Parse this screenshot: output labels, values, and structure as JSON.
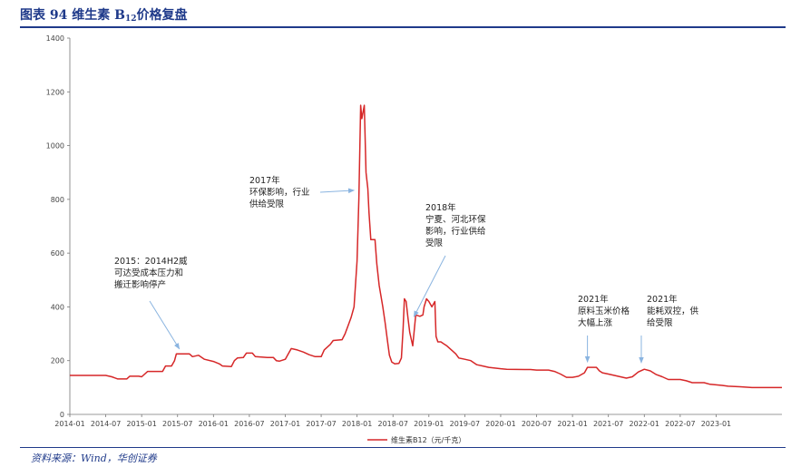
{
  "header": {
    "title_prefix": "图表 94  维生素 B",
    "title_sub": "12",
    "title_suffix": "价格复盘"
  },
  "footer": {
    "source": "资料来源：Wind，华创证券"
  },
  "chart_data": {
    "type": "line",
    "ylim": [
      0,
      1400
    ],
    "yticks": [
      0,
      200,
      400,
      600,
      800,
      1000,
      1200,
      1400
    ],
    "xlim": [
      0,
      119
    ],
    "xticks": [
      {
        "label": "2014-01",
        "m": 0
      },
      {
        "label": "2014-07",
        "m": 6
      },
      {
        "label": "2015-01",
        "m": 12
      },
      {
        "label": "2015-07",
        "m": 18
      },
      {
        "label": "2016-01",
        "m": 24
      },
      {
        "label": "2016-07",
        "m": 30
      },
      {
        "label": "2017-01",
        "m": 36
      },
      {
        "label": "2017-07",
        "m": 42
      },
      {
        "label": "2018-01",
        "m": 48
      },
      {
        "label": "2018-07",
        "m": 54
      },
      {
        "label": "2019-01",
        "m": 60
      },
      {
        "label": "2019-07",
        "m": 66
      },
      {
        "label": "2020-01",
        "m": 72
      },
      {
        "label": "2020-07",
        "m": 78
      },
      {
        "label": "2021-01",
        "m": 84
      },
      {
        "label": "2021-07",
        "m": 90
      },
      {
        "label": "2022-01",
        "m": 96
      },
      {
        "label": "2022-07",
        "m": 102
      },
      {
        "label": "2023-01",
        "m": 108
      }
    ],
    "series": [
      {
        "name": "维生素B12（元/千克）",
        "color": "#d62728",
        "points": [
          [
            0,
            145
          ],
          [
            6,
            145
          ],
          [
            7,
            140
          ],
          [
            8,
            132
          ],
          [
            9.5,
            132
          ],
          [
            10,
            142
          ],
          [
            11.5,
            142
          ],
          [
            12,
            140
          ],
          [
            13,
            160
          ],
          [
            15.5,
            160
          ],
          [
            16,
            180
          ],
          [
            17,
            180
          ],
          [
            17.5,
            200
          ],
          [
            17.8,
            225
          ],
          [
            20,
            225
          ],
          [
            20.5,
            215
          ],
          [
            21.5,
            220
          ],
          [
            22.5,
            205
          ],
          [
            24,
            197
          ],
          [
            25,
            188
          ],
          [
            25.5,
            180
          ],
          [
            27,
            178
          ],
          [
            27.5,
            200
          ],
          [
            28,
            210
          ],
          [
            29,
            212
          ],
          [
            29.5,
            228
          ],
          [
            30.5,
            228
          ],
          [
            31,
            215
          ],
          [
            33,
            212
          ],
          [
            34,
            212
          ],
          [
            34.5,
            200
          ],
          [
            35,
            198
          ],
          [
            36,
            205
          ],
          [
            36.5,
            225
          ],
          [
            37,
            245
          ],
          [
            38,
            240
          ],
          [
            39,
            232
          ],
          [
            40,
            222
          ],
          [
            41,
            215
          ],
          [
            42,
            215
          ],
          [
            42.5,
            240
          ],
          [
            43.5,
            260
          ],
          [
            44,
            275
          ],
          [
            45.5,
            278
          ],
          [
            46,
            300
          ],
          [
            46.5,
            330
          ],
          [
            47,
            360
          ],
          [
            47.5,
            400
          ],
          [
            48,
            570
          ],
          [
            48.3,
            800
          ],
          [
            48.6,
            1150
          ],
          [
            48.8,
            1100
          ],
          [
            49.2,
            1150
          ],
          [
            49.5,
            900
          ],
          [
            49.8,
            840
          ],
          [
            50,
            750
          ],
          [
            50.3,
            650
          ],
          [
            51,
            650
          ],
          [
            51.3,
            560
          ],
          [
            51.7,
            480
          ],
          [
            52.3,
            400
          ],
          [
            52.7,
            340
          ],
          [
            53.1,
            270
          ],
          [
            53.4,
            220
          ],
          [
            53.8,
            195
          ],
          [
            54.3,
            188
          ],
          [
            55,
            190
          ],
          [
            55.4,
            210
          ],
          [
            55.7,
            320
          ],
          [
            55.9,
            430
          ],
          [
            56.2,
            420
          ],
          [
            56.5,
            360
          ],
          [
            56.8,
            305
          ],
          [
            57.1,
            275
          ],
          [
            57.3,
            255
          ],
          [
            57.5,
            300
          ],
          [
            57.8,
            370
          ],
          [
            58.5,
            365
          ],
          [
            59,
            370
          ],
          [
            59.2,
            400
          ],
          [
            59.6,
            430
          ],
          [
            60,
            420
          ],
          [
            60.5,
            400
          ],
          [
            61,
            420
          ],
          [
            61.2,
            290
          ],
          [
            61.5,
            270
          ],
          [
            62,
            270
          ],
          [
            62.5,
            262
          ],
          [
            63,
            255
          ],
          [
            64,
            235
          ],
          [
            64.5,
            225
          ],
          [
            65,
            210
          ],
          [
            66,
            205
          ],
          [
            67,
            200
          ],
          [
            68,
            185
          ],
          [
            69,
            180
          ],
          [
            70,
            175
          ],
          [
            72,
            170
          ],
          [
            73,
            168
          ],
          [
            76,
            167
          ],
          [
            77,
            167
          ],
          [
            78,
            165
          ],
          [
            80,
            165
          ],
          [
            81,
            160
          ],
          [
            82,
            150
          ],
          [
            83,
            138
          ],
          [
            84,
            138
          ],
          [
            85,
            142
          ],
          [
            86,
            155
          ],
          [
            86.5,
            175
          ],
          [
            88,
            175
          ],
          [
            88.5,
            162
          ],
          [
            89,
            155
          ],
          [
            90,
            150
          ],
          [
            91,
            145
          ],
          [
            92,
            140
          ],
          [
            93,
            135
          ],
          [
            94,
            140
          ],
          [
            95,
            158
          ],
          [
            96,
            168
          ],
          [
            97,
            162
          ],
          [
            98,
            148
          ],
          [
            99,
            140
          ],
          [
            100,
            130
          ],
          [
            101,
            130
          ],
          [
            102,
            130
          ],
          [
            103,
            125
          ],
          [
            104,
            118
          ],
          [
            106,
            118
          ],
          [
            107,
            112
          ],
          [
            109,
            108
          ],
          [
            110,
            105
          ],
          [
            112,
            103
          ],
          [
            114,
            100
          ],
          [
            116,
            100
          ],
          [
            119,
            100
          ]
        ]
      }
    ],
    "annotations": [
      {
        "lines": [
          "2015：2014H2威",
          "可达受成本压力和",
          "搬迁影响停产"
        ],
        "target": [
          18.3,
          230
        ]
      },
      {
        "lines": [
          "2017年",
          "环保影响，行业",
          "供给受限"
        ],
        "target": [
          47.5,
          820
        ]
      },
      {
        "lines": [
          "2018年",
          "宁夏、河北环保",
          "影响，行业供给",
          "受限"
        ],
        "target": [
          57.5,
          350
        ]
      },
      {
        "lines": [
          "2021年",
          "原料玉米价格",
          "大幅上涨"
        ],
        "target": [
          86.5,
          188
        ]
      },
      {
        "lines": [
          "2021年",
          "能耗双控，供",
          "给受限"
        ],
        "target": [
          95.5,
          185
        ]
      }
    ],
    "legend": {
      "label": "维生素B12（元/千克）",
      "position": "bottom"
    }
  }
}
